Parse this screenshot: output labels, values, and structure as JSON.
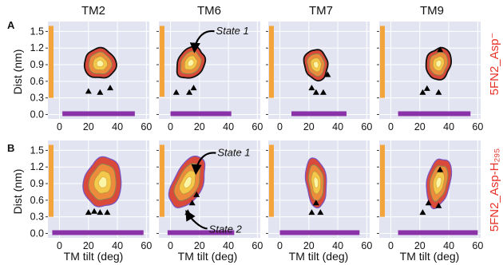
{
  "figure": {
    "row_labels": [
      "A",
      "B"
    ],
    "columns": [
      "TM2",
      "TM6",
      "TM7",
      "TM9"
    ],
    "side_labels": [
      "5FN2_Asp⁻",
      "5FN2_Asp-H₂₉₅"
    ]
  },
  "chart_data": {
    "type": "contour",
    "xlabel": "TM tilt (deg)",
    "ylabel": "Dist (nm)",
    "xlim": [
      -8,
      62
    ],
    "ylim": [
      -0.08,
      1.65
    ],
    "xticks": [
      0,
      20,
      40,
      60
    ],
    "yticks": [
      0.0,
      0.3,
      0.6,
      0.9,
      1.2,
      1.5
    ],
    "grid": true,
    "colors": {
      "background": "#e3e4f1",
      "grid": "#ffffff",
      "outer": "#d94a3a",
      "mid": "#ee8a3c",
      "inner": "#f4c84a",
      "core": "#fbf5a8",
      "outline_A": "#111111",
      "outline_B": "#7a55c0",
      "y_marginal": "#f3a43a",
      "x_marginal": "#8a32a8",
      "marker": "#000000"
    },
    "panels": [
      {
        "row": "A",
        "column": "TM2",
        "center": [
          28,
          0.92
        ],
        "spread": [
          11,
          0.27
        ],
        "tilt": 0.1,
        "x_range": [
          2,
          52
        ],
        "y_range": [
          0.3,
          1.6
        ],
        "markers": [
          [
            20,
            0.42
          ],
          [
            28,
            0.4
          ],
          [
            35,
            0.48
          ]
        ]
      },
      {
        "row": "A",
        "column": "TM6",
        "center": [
          14,
          0.93
        ],
        "spread": [
          9,
          0.3
        ],
        "tilt": 0.55,
        "x_range": [
          0,
          42
        ],
        "y_range": [
          0.32,
          1.6
        ],
        "markers": [
          [
            4,
            0.4
          ],
          [
            13,
            0.4
          ],
          [
            16,
            0.48
          ]
        ],
        "annotation": {
          "text": "State 1",
          "at": [
            16,
            1.1
          ]
        }
      },
      {
        "row": "A",
        "column": "TM7",
        "center": [
          25,
          0.9
        ],
        "spread": [
          8,
          0.28
        ],
        "tilt": -0.2,
        "x_range": [
          8,
          46
        ],
        "y_range": [
          0.3,
          1.6
        ],
        "markers": [
          [
            22,
            0.48
          ],
          [
            25,
            0.4
          ],
          [
            30,
            0.4
          ],
          [
            33,
            0.72
          ]
        ]
      },
      {
        "row": "A",
        "column": "TM9",
        "center": [
          33,
          0.92
        ],
        "spread": [
          8.5,
          0.29
        ],
        "tilt": 0.25,
        "x_range": [
          5,
          55
        ],
        "y_range": [
          0.3,
          1.6
        ],
        "markers": [
          [
            25,
            0.47
          ],
          [
            22,
            0.4
          ],
          [
            33,
            0.4
          ],
          [
            34,
            1.17
          ]
        ]
      },
      {
        "row": "B",
        "column": "TM2",
        "center": [
          30,
          0.92
        ],
        "spread": [
          13,
          0.45
        ],
        "tilt": 0.15,
        "x_range": [
          -5,
          58
        ],
        "y_range": [
          0.3,
          1.6
        ],
        "markers": [
          [
            20,
            0.38
          ],
          [
            24,
            0.4
          ],
          [
            28,
            0.38
          ],
          [
            33,
            0.38
          ]
        ]
      },
      {
        "row": "B",
        "column": "TM6",
        "center": [
          12,
          0.92
        ],
        "spread": [
          10,
          0.5
        ],
        "tilt": 0.45,
        "x_range": [
          -2,
          44
        ],
        "y_range": [
          0.3,
          1.6
        ],
        "markers": [
          [
            12,
            0.38
          ],
          [
            15,
            0.55
          ],
          [
            18,
            0.7
          ]
        ],
        "annotation": {
          "text": "State 1 / State 2",
          "at": [
            17,
            1.05
          ]
        }
      },
      {
        "row": "B",
        "column": "TM7",
        "center": [
          25,
          0.92
        ],
        "spread": [
          7,
          0.45
        ],
        "tilt": -0.1,
        "x_range": [
          0,
          55
        ],
        "y_range": [
          0.3,
          1.6
        ],
        "markers": [
          [
            22,
            0.38
          ],
          [
            25,
            0.55
          ],
          [
            28,
            0.38
          ]
        ]
      },
      {
        "row": "B",
        "column": "TM9",
        "center": [
          33,
          0.92
        ],
        "spread": [
          8,
          0.45
        ],
        "tilt": 0.2,
        "x_range": [
          5,
          60
        ],
        "y_range": [
          0.3,
          1.6
        ],
        "markers": [
          [
            22,
            0.38
          ],
          [
            26,
            0.55
          ],
          [
            33,
            0.5
          ],
          [
            34,
            1.15
          ]
        ]
      }
    ],
    "annotations": [
      {
        "panel": "A-TM6",
        "text": "State 1",
        "data_point": [
          16,
          1.1
        ]
      },
      {
        "panel": "B-TM6",
        "text": "State 1",
        "data_point": [
          17,
          1.05
        ]
      },
      {
        "panel": "B-TM6",
        "text": "State 2",
        "data_point": [
          10,
          0.42
        ]
      }
    ]
  }
}
